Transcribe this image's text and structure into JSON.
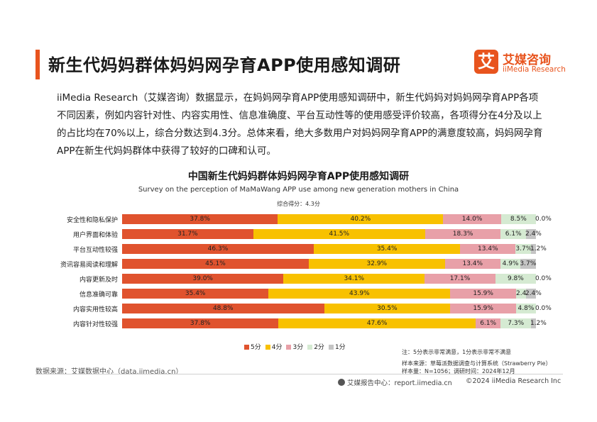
{
  "page": {
    "title": "新生代妈妈群体妈妈网孕育APP使用感知调研",
    "logo_mark": "艾",
    "logo_cn": "艾媒咨询",
    "logo_en": "iiMedia Research",
    "intro": "iiMedia Research（艾媒咨询）数据显示，在妈妈网孕育APP使用感知调研中，新生代妈妈对妈妈网孕育APP各项不同因素，例如内容针对性、内容实用性、信息准确度、平台互动性等的使用感受评价较高，各项得分在4分及以上的占比均在70%以上，综合分数达到4.3分。总体来看，绝大多数用户对妈妈网孕育APP的满意度较高，妈妈网孕育APP在新生代妈妈群体中获得了较好的口碑和认可。",
    "accent_color": "#e8541e"
  },
  "chart_data": {
    "type": "bar",
    "orientation": "horizontal",
    "stacked": true,
    "percent": true,
    "title": "中国新生代妈妈群体妈妈网孕育APP使用感知调研",
    "subtitle": "Survey on the perception of MaMaWang APP use among new generation mothers in China",
    "overall_score": "综合得分：4.3分",
    "categories": [
      "安全性和隐私保护",
      "用户界面和体验",
      "平台互动性较强",
      "资讯容易阅读和理解",
      "内容更新及时",
      "信息准确可靠",
      "内容实用性较高",
      "内容针对性较强"
    ],
    "series": [
      {
        "name": "5分",
        "color": "#e0532e",
        "values": [
          37.8,
          31.7,
          46.3,
          45.1,
          39.0,
          35.4,
          48.8,
          37.8
        ],
        "labels": [
          "37.8%",
          "31.7%",
          "46.3%",
          "45.1%",
          "39.0%",
          "35.4%",
          "48.8%",
          "37.8%"
        ]
      },
      {
        "name": "4分",
        "color": "#f8c100",
        "values": [
          40.2,
          41.5,
          35.4,
          32.9,
          34.1,
          43.9,
          30.5,
          47.6
        ],
        "labels": [
          "40.2%",
          "41.5%",
          "35.4%",
          "32.9%",
          "34.1%",
          "43.9%",
          "30.5%",
          "47.6%"
        ]
      },
      {
        "name": "3分",
        "color": "#e8a0a8",
        "values": [
          14.0,
          18.3,
          13.4,
          13.4,
          17.1,
          15.9,
          15.9,
          6.1
        ],
        "labels": [
          "14.0%",
          "18.3%",
          "13.4%",
          "13.4%",
          "17.1%",
          "15.9%",
          "15.9%",
          "6.1%"
        ]
      },
      {
        "name": "2分",
        "color": "#d5ead2",
        "values": [
          8.5,
          6.1,
          3.7,
          4.9,
          9.8,
          2.4,
          4.8,
          7.3
        ],
        "labels": [
          "8.5%",
          "6.1%",
          "3.7%",
          "4.9%",
          "9.8%",
          "2.4%",
          "4.8%",
          "7.3%"
        ]
      },
      {
        "name": "1分",
        "color": "#c4c4c4",
        "values": [
          0.0,
          2.4,
          1.2,
          3.7,
          0.0,
          2.4,
          0.0,
          1.2
        ],
        "labels": [
          "0.0%",
          "2.4%",
          "1.2%",
          "3.7%",
          "0.0%",
          "2.4%",
          "0.0%",
          "1.2%"
        ]
      }
    ],
    "xlim": [
      0,
      100
    ],
    "legend": "bottom-center"
  },
  "notes": {
    "scale_note": "注：5分表示非常满意，1分表示非常不满意",
    "sample_source": "样本来源：草莓派数据调查与计算系统（Strawberry Pie）",
    "sample_size": "样本量：N=1056；调研时间：2024年12月",
    "data_source": "数据来源：艾媒数据中心（data.iimedia.cn）",
    "footer_site": "艾媒报告中心：report.iimedia.cn",
    "footer_copyright": "©2024  iiMedia Research  Inc"
  }
}
